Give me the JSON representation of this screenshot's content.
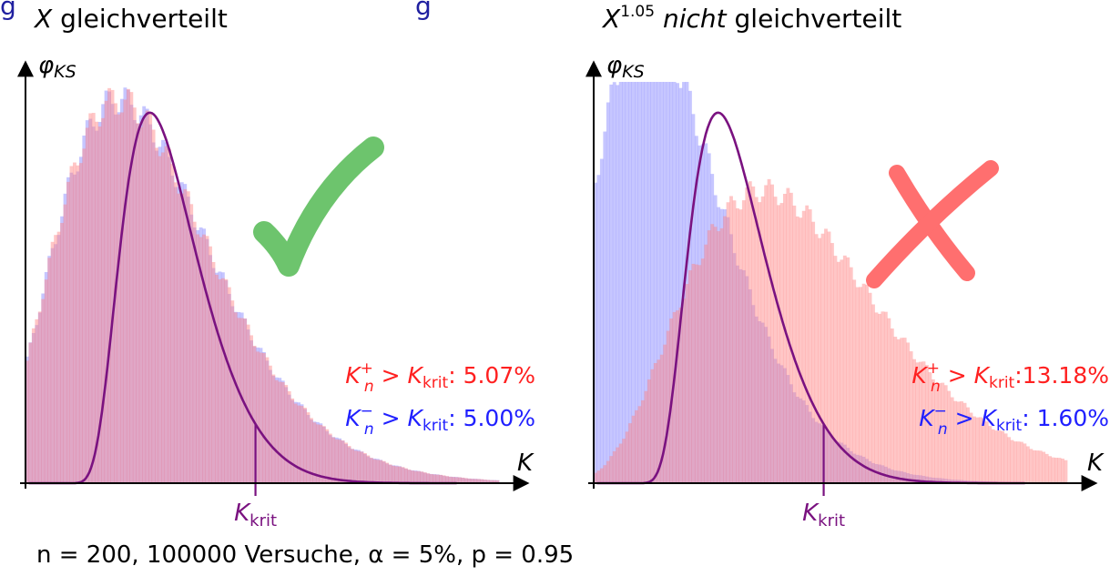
{
  "page": {
    "top_title_fragment": "g",
    "top_title_fragment_right": "g",
    "footer": "n = 200, 100000 Versuche, α = 5%, p = 0.95"
  },
  "colors": {
    "pdf_curve": "#7a1280",
    "hist_plus": "#ff8080",
    "hist_minus": "#8080ff",
    "check": "#60c060",
    "cross": "#ff5050",
    "stat_plus": "#ff2020",
    "stat_minus": "#2020ff"
  },
  "icons": {
    "left_verdict": "checkmark-icon",
    "right_verdict": "cross-icon"
  },
  "chart_data": [
    {
      "type": "area",
      "title_var": "X",
      "title_sup": "",
      "title_em": "",
      "title_rest": " gleichverteilt",
      "ylabel": "φKS",
      "ylabel_sub": "KS",
      "xlabel": "K",
      "kcrit_label": "K",
      "kcrit_sub": "krit",
      "kcrit": 1.36,
      "xlim": [
        0,
        2.8
      ],
      "ylim": [
        0,
        1.0
      ],
      "grid": false,
      "series": [
        {
          "name": "K⁺ₙ",
          "kind": "histogram",
          "shape": [
            0.55,
            0.22
          ],
          "peak": 0.955
        },
        {
          "name": "K⁻ₙ",
          "kind": "histogram",
          "shape": [
            0.55,
            0.22
          ],
          "peak": 0.955
        },
        {
          "name": "φKS",
          "kind": "pdf",
          "peak": 0.95
        }
      ],
      "annotations": [
        {
          "var": "K",
          "sup": "+",
          "sub": "n",
          "op": " > ",
          "rhs": "K",
          "rhs_sub": "krit",
          "colon": ":",
          "value": "  5.07%",
          "color": "red"
        },
        {
          "var": "K",
          "sup": "−",
          "sub": "n",
          "op": " > ",
          "rhs": "K",
          "rhs_sub": "krit",
          "colon": ":",
          "value": "  5.00%",
          "color": "blue"
        }
      ],
      "verdict": "check"
    },
    {
      "type": "area",
      "title_var": "X",
      "title_sup": "1.05",
      "title_em": "nicht",
      "title_rest": " gleichverteilt",
      "ylabel": "φKS",
      "ylabel_sub": "KS",
      "xlabel": "K",
      "kcrit_label": "K",
      "kcrit_sub": "krit",
      "kcrit": 1.36,
      "xlim": [
        0,
        2.8
      ],
      "ylim": [
        0,
        1.0
      ],
      "grid": false,
      "series": [
        {
          "name": "K⁺ₙ",
          "kind": "histogram",
          "shape": [
            1.0,
            0.26
          ],
          "peak": 0.73
        },
        {
          "name": "K⁻ₙ",
          "kind": "histogram",
          "shape": [
            0.31,
            0.18
          ],
          "peak": 1.15
        },
        {
          "name": "φKS",
          "kind": "pdf",
          "peak": 0.95
        }
      ],
      "annotations": [
        {
          "var": "K",
          "sup": "+",
          "sub": "n",
          "op": " > ",
          "rhs": "K",
          "rhs_sub": "krit",
          "colon": ":",
          "value": "13.18%",
          "color": "red"
        },
        {
          "var": "K",
          "sup": "−",
          "sub": "n",
          "op": " > ",
          "rhs": "K",
          "rhs_sub": "krit",
          "colon": ":",
          "value": "  1.60%",
          "color": "blue"
        }
      ],
      "verdict": "cross"
    }
  ]
}
